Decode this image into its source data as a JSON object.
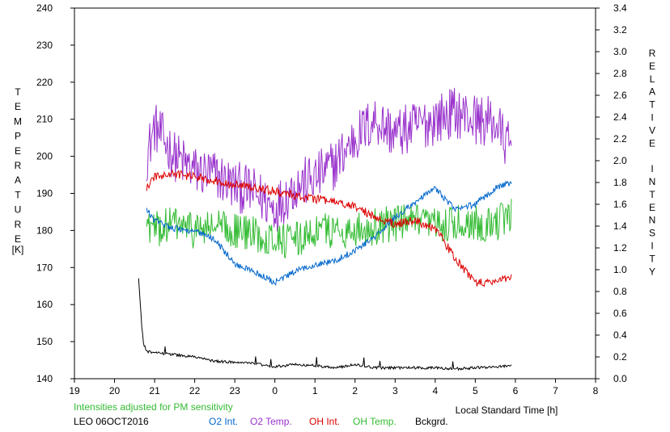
{
  "chart_data": {
    "type": "line",
    "title": "",
    "xlabel": "Local Standard Time [h]",
    "ylabel_left": "TEMPERATURE [K]",
    "ylabel_right": "RELATIVE INTENSITY",
    "ylabel_left_letters": [
      "T",
      "E",
      "M",
      "P",
      "E",
      "R",
      "A",
      "T",
      "U",
      "R",
      "E"
    ],
    "ylabel_left_unit": "[K]",
    "ylabel_right_letters": [
      "R",
      "E",
      "L",
      "A",
      "T",
      "I",
      "V",
      "E",
      "",
      "I",
      "N",
      "T",
      "E",
      "N",
      "S",
      "I",
      "T",
      "Y"
    ],
    "xlim": [
      19,
      32
    ],
    "ylim_left": [
      140,
      240
    ],
    "ylim_right": [
      0.0,
      3.4
    ],
    "x_ticks": [
      "19",
      "20",
      "21",
      "22",
      "23",
      "0",
      "1",
      "2",
      "3",
      "4",
      "5",
      "6",
      "7",
      "8"
    ],
    "y_left_ticks": [
      "140",
      "150",
      "160",
      "170",
      "180",
      "190",
      "200",
      "210",
      "220",
      "230",
      "240"
    ],
    "y_right_ticks": [
      "0.0",
      "0.2",
      "0.4",
      "0.6",
      "0.8",
      "1.0",
      "1.2",
      "1.4",
      "1.6",
      "1.8",
      "2.0",
      "2.2",
      "2.4",
      "2.6",
      "2.8",
      "3.0",
      "3.2",
      "3.4"
    ],
    "grid": false,
    "note": "Intensities adjusted for PM sensitivity",
    "station": "LEO 06OCT2016",
    "legend": [
      {
        "label": "O2 Int.",
        "color": "#0066cc"
      },
      {
        "label": "O2 Temp.",
        "color": "#9933cc"
      },
      {
        "label": "OH Int.",
        "color": "#dd0000"
      },
      {
        "label": "OH Temp.",
        "color": "#33bb33"
      },
      {
        "label": "Bckgrd.",
        "color": "#000000"
      }
    ],
    "series": [
      {
        "name": "O2 Temp.",
        "axis": "left",
        "color": "#9933cc",
        "noise": 7,
        "x": [
          20.8,
          21.0,
          21.5,
          22.0,
          22.5,
          23.0,
          23.5,
          24.0,
          24.5,
          25.0,
          25.5,
          26.0,
          26.5,
          27.0,
          27.5,
          28.0,
          28.5,
          29.0,
          29.5,
          29.9
        ],
        "y": [
          200,
          208,
          200,
          196,
          195,
          192,
          190,
          186,
          192,
          194,
          198,
          205,
          210,
          206,
          208,
          210,
          212,
          210,
          209,
          201
        ]
      },
      {
        "name": "OH Temp.",
        "axis": "left",
        "color": "#33bb33",
        "noise": 5,
        "x": [
          20.8,
          21.0,
          21.5,
          22.0,
          22.5,
          23.0,
          23.5,
          24.0,
          24.5,
          25.0,
          25.5,
          26.0,
          26.5,
          27.0,
          27.5,
          28.0,
          28.5,
          29.0,
          29.5,
          29.9
        ],
        "y": [
          182,
          180,
          182,
          180,
          181,
          180,
          179,
          178,
          177,
          180,
          180,
          180,
          181,
          182,
          182,
          181,
          182,
          182,
          182,
          184
        ]
      },
      {
        "name": "O2 Int.",
        "axis": "right",
        "color": "#0066cc",
        "noise": 0.03,
        "x": [
          20.8,
          21.0,
          21.5,
          22.0,
          22.5,
          23.0,
          23.5,
          24.0,
          24.5,
          25.0,
          25.5,
          26.0,
          26.5,
          27.0,
          27.5,
          28.0,
          28.5,
          29.0,
          29.5,
          29.9
        ],
        "y": [
          1.55,
          1.45,
          1.38,
          1.35,
          1.28,
          1.05,
          0.98,
          0.88,
          0.98,
          1.05,
          1.08,
          1.18,
          1.3,
          1.48,
          1.62,
          1.75,
          1.55,
          1.6,
          1.75,
          1.8
        ]
      },
      {
        "name": "OH Int.",
        "axis": "right",
        "color": "#dd0000",
        "noise": 0.04,
        "x": [
          20.8,
          21.0,
          21.5,
          22.0,
          22.5,
          23.0,
          23.5,
          24.0,
          24.5,
          25.0,
          25.5,
          26.0,
          26.5,
          27.0,
          27.5,
          28.0,
          28.5,
          29.0,
          29.5,
          29.9
        ],
        "y": [
          1.75,
          1.85,
          1.88,
          1.85,
          1.82,
          1.78,
          1.75,
          1.72,
          1.68,
          1.65,
          1.62,
          1.58,
          1.48,
          1.42,
          1.45,
          1.38,
          1.1,
          0.88,
          0.88,
          0.95
        ]
      },
      {
        "name": "Bckgrd.",
        "axis": "right",
        "color": "#000000",
        "noise": 0.012,
        "x": [
          20.6,
          20.65,
          20.7,
          20.8,
          21.0,
          21.5,
          22.0,
          22.5,
          23.0,
          23.5,
          24.0,
          24.5,
          25.0,
          25.5,
          26.0,
          26.5,
          27.0,
          27.5,
          28.0,
          28.5,
          29.0,
          29.5,
          29.9
        ],
        "y": [
          0.92,
          0.65,
          0.35,
          0.25,
          0.24,
          0.22,
          0.2,
          0.16,
          0.15,
          0.14,
          0.11,
          0.13,
          0.12,
          0.1,
          0.13,
          0.1,
          0.1,
          0.1,
          0.1,
          0.09,
          0.1,
          0.11,
          0.12
        ]
      }
    ]
  }
}
